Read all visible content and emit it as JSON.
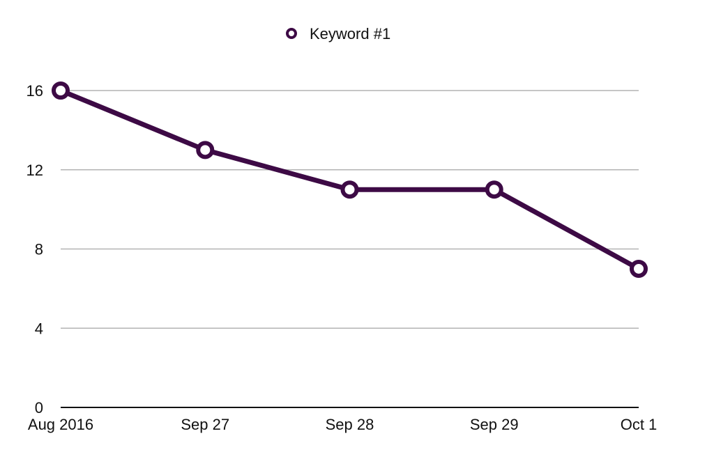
{
  "chart_data": {
    "type": "line",
    "title": "",
    "xlabel": "",
    "ylabel": "",
    "categories": [
      "Aug 2016",
      "Sep 27",
      "Sep 28",
      "Sep 29",
      "Oct 1"
    ],
    "series": [
      {
        "name": "Keyword #1",
        "values": [
          16,
          13,
          11,
          11,
          7
        ],
        "color": "#3d0a45"
      }
    ],
    "ylim": [
      0,
      16
    ],
    "yticks": [
      0,
      4,
      8,
      12,
      16
    ],
    "grid": true,
    "legend": "top-center",
    "colors": {
      "gridline": "#b3b3b3",
      "axis": "#111111",
      "marker_fill": "#ffffff"
    }
  }
}
